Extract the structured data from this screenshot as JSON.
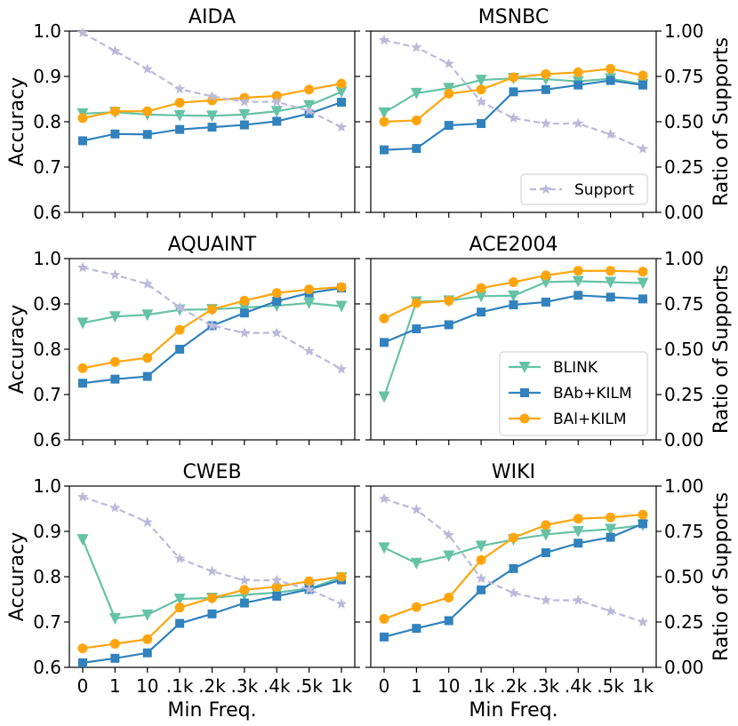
{
  "chart_data": {
    "type": "line",
    "x_categories": [
      "0",
      "1",
      "10",
      ".1k",
      ".2k",
      ".3k",
      ".4k",
      ".5k",
      "1k"
    ],
    "xlabel": "Min Freq.",
    "ylabel_left": "Accuracy",
    "ylabel_right": "Ratio of Supports",
    "ylim_left": [
      0.6,
      1.0
    ],
    "ylim_right": [
      0.0,
      1.0
    ],
    "left_ticks": [
      "0.6",
      "0.7",
      "0.8",
      "0.9",
      "1.0"
    ],
    "right_ticks": [
      "0.00",
      "0.25",
      "0.50",
      "0.75",
      "1.00"
    ],
    "series_styles": {
      "BLINK": {
        "color": "#66c2a5",
        "marker": "triangle-down"
      },
      "BAb+KILM": {
        "color": "#3182bd",
        "marker": "square"
      },
      "BAl+KILM": {
        "color": "#fea50e",
        "marker": "circle"
      },
      "Support": {
        "color": "#bcb9db",
        "marker": "star"
      }
    },
    "legends": [
      {
        "panel": 1,
        "entries": [
          "Support"
        ],
        "position": "lower-right"
      },
      {
        "panel": 3,
        "entries": [
          "BLINK",
          "BAb+KILM",
          "BAl+KILM"
        ],
        "position": "lower-right"
      }
    ],
    "panels": [
      {
        "title": "AIDA",
        "series": [
          {
            "name": "BLINK",
            "values": [
              0.818,
              0.821,
              0.816,
              0.814,
              0.813,
              0.816,
              0.823,
              0.836,
              0.866
            ]
          },
          {
            "name": "BAb+KILM",
            "values": [
              0.758,
              0.773,
              0.772,
              0.783,
              0.788,
              0.793,
              0.801,
              0.818,
              0.843
            ]
          },
          {
            "name": "BAl+KILM",
            "values": [
              0.808,
              0.823,
              0.823,
              0.842,
              0.847,
              0.853,
              0.857,
              0.871,
              0.884
            ]
          },
          {
            "name": "Support",
            "values": [
              0.99,
              0.89,
              0.79,
              0.68,
              0.64,
              0.61,
              0.61,
              0.56,
              0.47
            ]
          }
        ]
      },
      {
        "title": "MSNBC",
        "series": [
          {
            "name": "BLINK",
            "values": [
              0.82,
              0.863,
              0.874,
              0.892,
              0.896,
              0.894,
              0.889,
              0.895,
              0.883
            ]
          },
          {
            "name": "BAb+KILM",
            "values": [
              0.738,
              0.741,
              0.792,
              0.796,
              0.866,
              0.871,
              0.881,
              0.891,
              0.881
            ]
          },
          {
            "name": "BAl+KILM",
            "values": [
              0.8,
              0.803,
              0.862,
              0.871,
              0.898,
              0.905,
              0.909,
              0.917,
              0.902
            ]
          },
          {
            "name": "Support",
            "values": [
              0.95,
              0.91,
              0.82,
              0.61,
              0.52,
              0.49,
              0.49,
              0.43,
              0.35
            ]
          }
        ]
      },
      {
        "title": "AQUAINT",
        "series": [
          {
            "name": "BLINK",
            "values": [
              0.858,
              0.872,
              0.876,
              0.887,
              0.888,
              0.892,
              0.896,
              0.902,
              0.895
            ]
          },
          {
            "name": "BAb+KILM",
            "values": [
              0.725,
              0.734,
              0.74,
              0.8,
              0.852,
              0.88,
              0.906,
              0.924,
              0.935
            ]
          },
          {
            "name": "BAl+KILM",
            "values": [
              0.758,
              0.772,
              0.781,
              0.843,
              0.888,
              0.907,
              0.924,
              0.932,
              0.937
            ]
          },
          {
            "name": "Support",
            "values": [
              0.95,
              0.91,
              0.86,
              0.73,
              0.63,
              0.59,
              0.59,
              0.49,
              0.39
            ]
          }
        ]
      },
      {
        "title": "ACE2004",
        "series": [
          {
            "name": "BLINK",
            "values": [
              0.695,
              0.905,
              0.907,
              0.917,
              0.918,
              0.948,
              0.95,
              0.948,
              0.946
            ]
          },
          {
            "name": "BAb+KILM",
            "values": [
              0.815,
              0.845,
              0.854,
              0.882,
              0.898,
              0.904,
              0.919,
              0.915,
              0.911
            ]
          },
          {
            "name": "BAl+KILM",
            "values": [
              0.868,
              0.902,
              0.907,
              0.935,
              0.948,
              0.963,
              0.973,
              0.973,
              0.971
            ]
          }
        ]
      },
      {
        "title": "CWEB",
        "series": [
          {
            "name": "BLINK",
            "values": [
              0.882,
              0.708,
              0.716,
              0.751,
              0.753,
              0.76,
              0.765,
              0.774,
              0.798
            ]
          },
          {
            "name": "BAb+KILM",
            "values": [
              0.61,
              0.62,
              0.632,
              0.697,
              0.718,
              0.742,
              0.757,
              0.772,
              0.793
            ]
          },
          {
            "name": "BAl+KILM",
            "values": [
              0.642,
              0.652,
              0.662,
              0.732,
              0.753,
              0.771,
              0.778,
              0.79,
              0.8
            ]
          },
          {
            "name": "Support",
            "values": [
              0.94,
              0.88,
              0.8,
              0.6,
              0.53,
              0.48,
              0.48,
              0.43,
              0.35
            ]
          }
        ]
      },
      {
        "title": "WIKI",
        "series": [
          {
            "name": "BLINK",
            "values": [
              0.864,
              0.83,
              0.846,
              0.868,
              0.882,
              0.893,
              0.9,
              0.905,
              0.914
            ]
          },
          {
            "name": "BAb+KILM",
            "values": [
              0.667,
              0.686,
              0.703,
              0.771,
              0.818,
              0.853,
              0.874,
              0.887,
              0.917
            ]
          },
          {
            "name": "BAl+KILM",
            "values": [
              0.707,
              0.733,
              0.754,
              0.837,
              0.886,
              0.914,
              0.928,
              0.931,
              0.937
            ]
          },
          {
            "name": "Support",
            "values": [
              0.93,
              0.87,
              0.73,
              0.49,
              0.41,
              0.37,
              0.37,
              0.31,
              0.25
            ]
          }
        ]
      }
    ]
  }
}
